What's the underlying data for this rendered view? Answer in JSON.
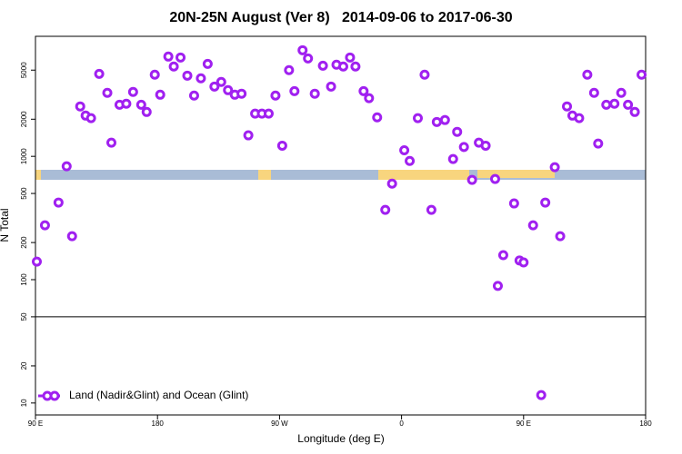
{
  "chart_data": {
    "type": "scatter",
    "title": "20N-25N August (Ver 8)   2014-09-06 to 2017-06-30",
    "x_label": "Longitude (deg E)",
    "y_label": "N Total",
    "log_y": true,
    "legend": "bottom-left",
    "xlim": [
      90,
      540
    ],
    "xticks": [
      {
        "value": 90,
        "label": "90 E"
      },
      {
        "value": 180,
        "label": "180"
      },
      {
        "value": 270,
        "label": "90 W"
      },
      {
        "value": 360,
        "label": "0"
      },
      {
        "value": 450,
        "label": "90 E"
      },
      {
        "value": 540,
        "label": "180"
      }
    ],
    "ylim": [
      8,
      9400
    ],
    "yticks": [
      10,
      20,
      50,
      100,
      200,
      500,
      1000,
      2000,
      5000
    ],
    "hlines": [
      50
    ],
    "x": [
      91,
      97,
      107,
      113,
      117,
      123,
      127,
      131,
      137,
      143,
      146,
      152,
      157,
      162,
      168,
      172,
      178,
      182,
      188,
      192,
      197,
      202,
      207,
      212,
      217,
      222,
      227,
      232,
      237,
      242,
      247,
      252,
      257,
      262,
      267,
      272,
      277,
      281,
      287,
      291,
      296,
      302,
      308,
      312,
      317,
      322,
      326,
      332,
      336,
      342,
      348,
      353,
      362,
      366,
      372,
      377,
      382,
      386,
      392,
      398,
      401,
      406,
      412,
      417,
      422,
      429,
      431,
      435,
      443,
      447,
      450,
      457,
      463,
      466,
      473,
      477,
      482,
      486,
      491,
      497,
      502,
      505,
      511,
      517,
      522,
      527,
      532,
      537
    ],
    "series": [
      {
        "name": "Land (Nadir&Glint) and Ocean (Glint)",
        "color": "#a020f0",
        "values": [
          140,
          276,
          422,
          830,
          225,
          2540,
          2140,
          2040,
          4660,
          3270,
          1290,
          2620,
          2670,
          3330,
          2620,
          2290,
          4590,
          3160,
          6440,
          5350,
          6330,
          4510,
          3110,
          4290,
          5620,
          3680,
          4010,
          3440,
          3160,
          3220,
          1480,
          2220,
          2220,
          2220,
          3110,
          1220,
          5000,
          3380,
          7250,
          6220,
          3220,
          5430,
          3680,
          5530,
          5350,
          6330,
          5350,
          3380,
          2960,
          2070,
          368,
          601,
          1120,
          918,
          2040,
          4590,
          368,
          1900,
          1970,
          951,
          1580,
          1190,
          644,
          1290,
          1220,
          655,
          89,
          158,
          415,
          143,
          138,
          276,
          11.6,
          422,
          817,
          225,
          2540,
          2140,
          2040,
          4590,
          3270,
          1270,
          2620,
          2670,
          3270,
          2620,
          2290,
          4590
        ]
      }
    ]
  }
}
